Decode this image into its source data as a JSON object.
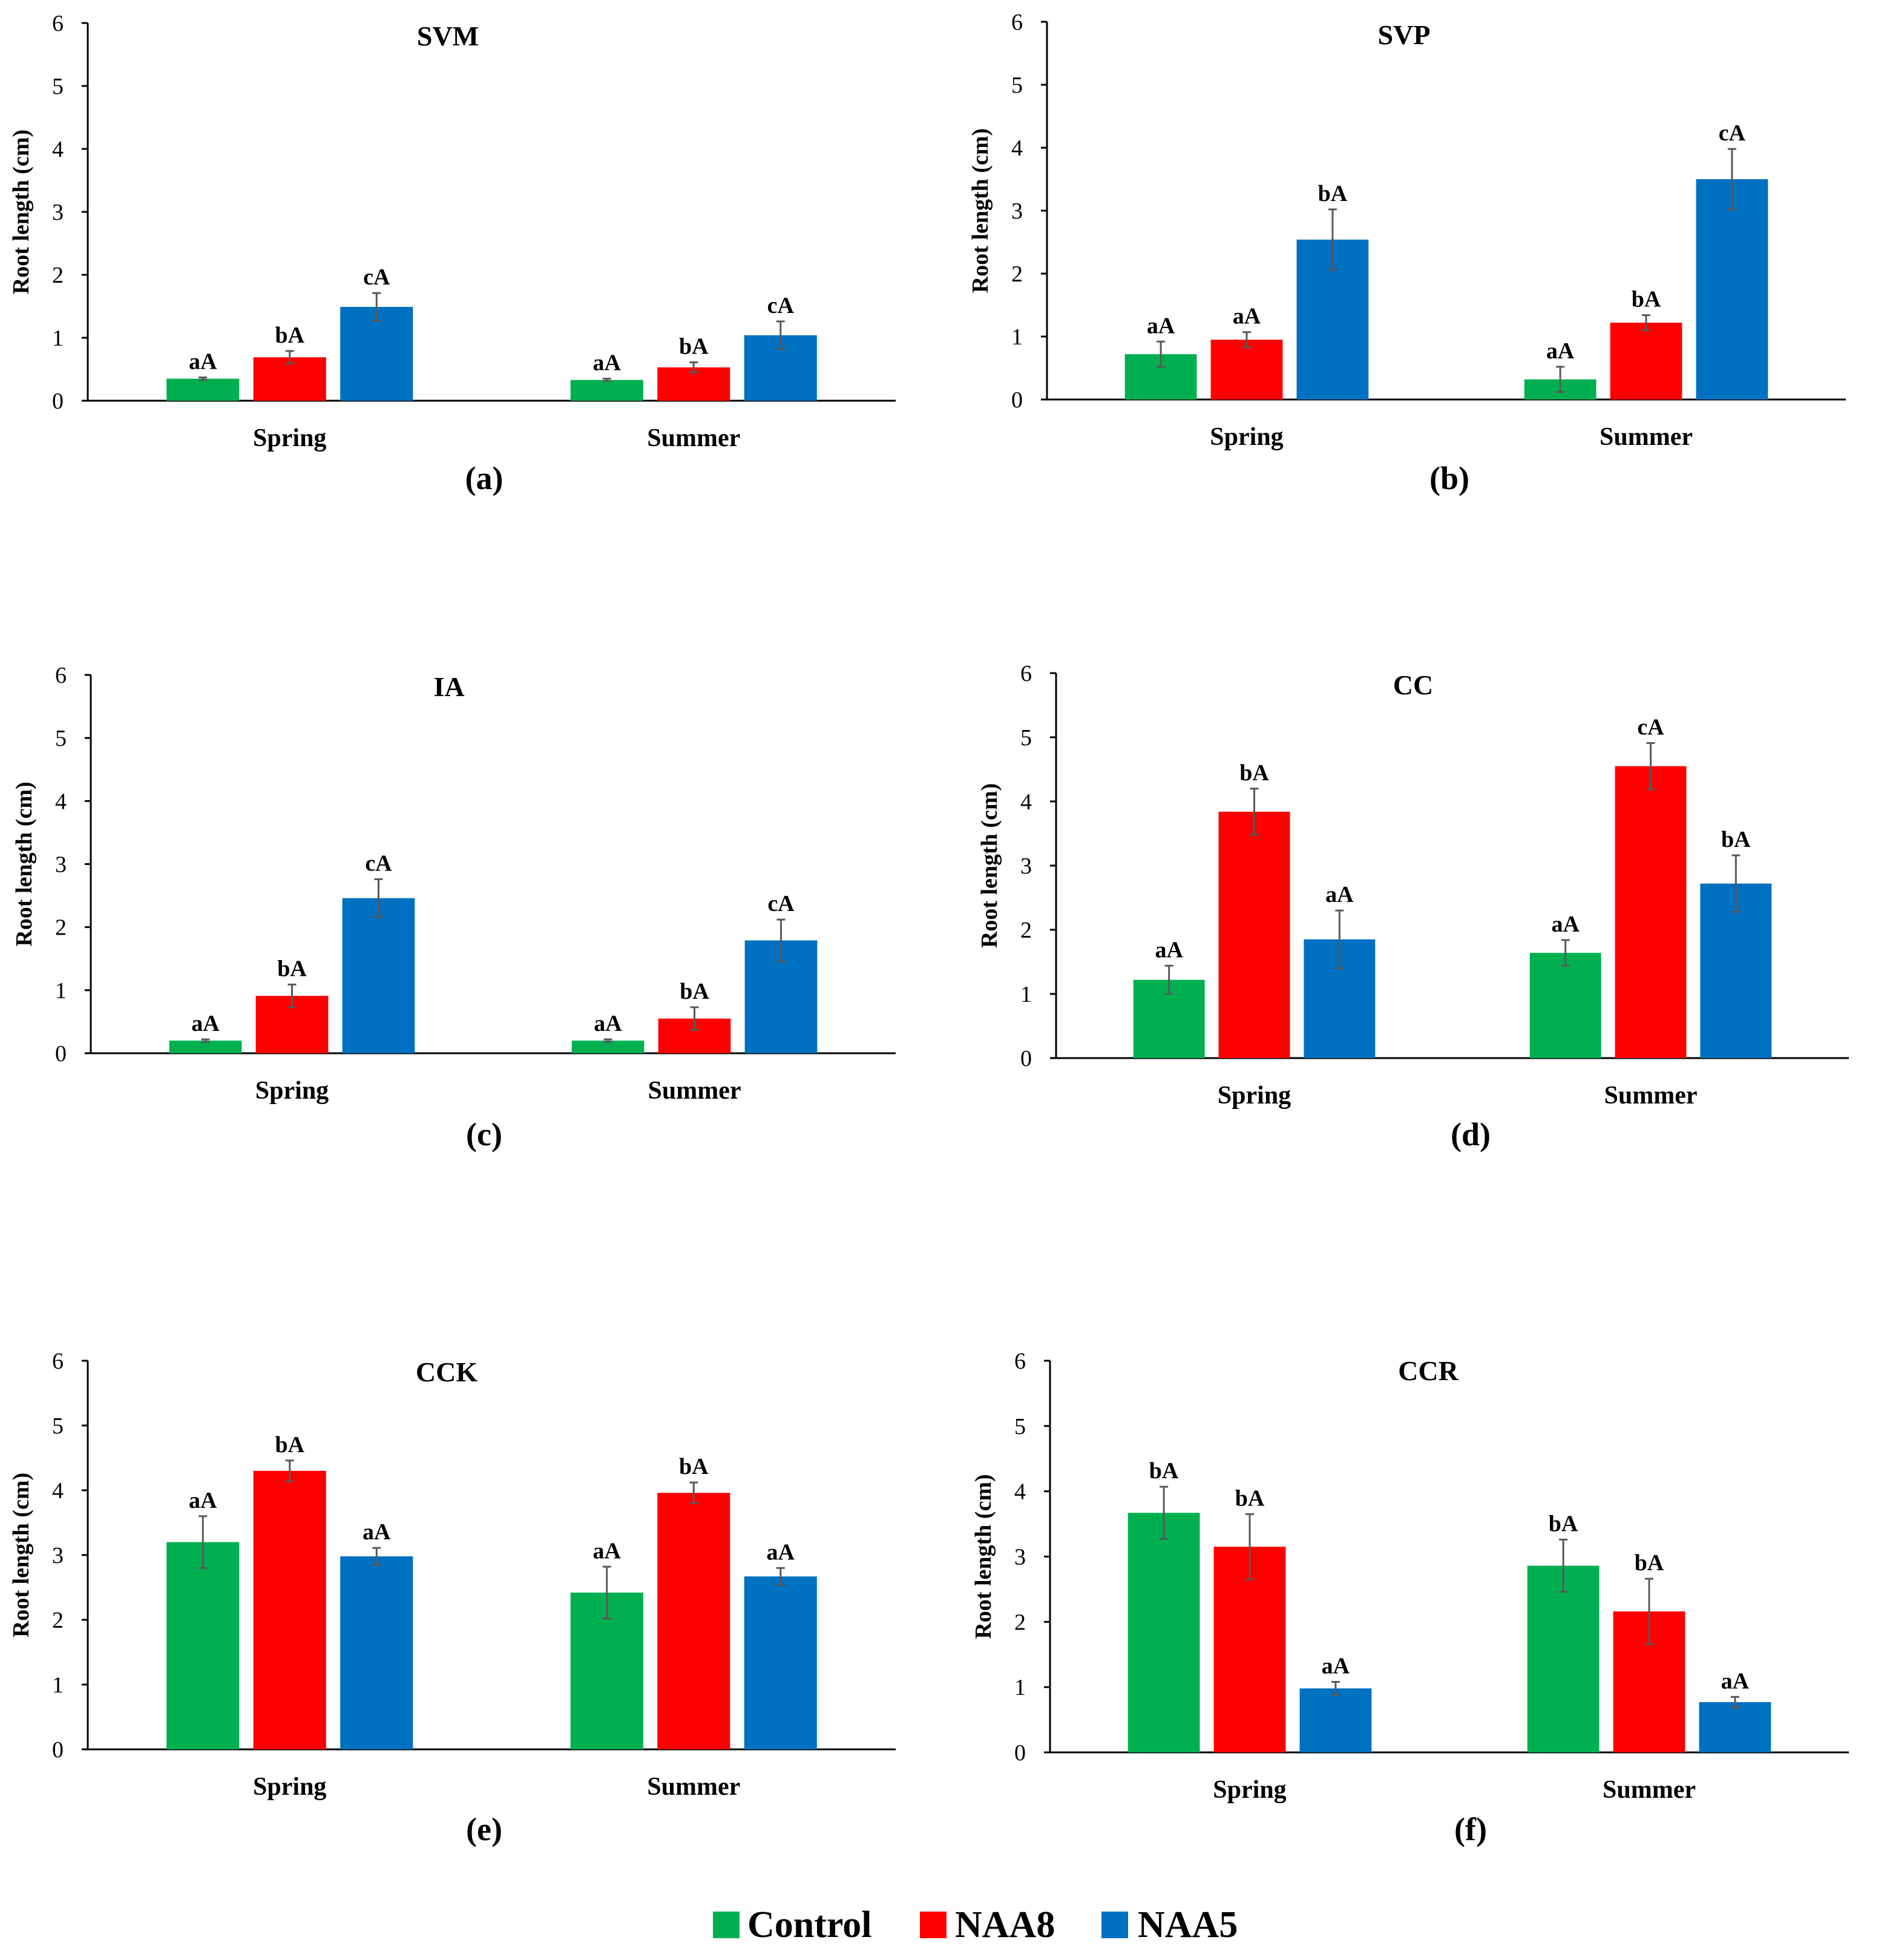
{
  "colors": {
    "Control": "#00b050",
    "NAA8": "#ff0000",
    "NAA5": "#0070c0"
  },
  "legend": [
    "Control",
    "NAA8",
    "NAA5"
  ],
  "chart_data": [
    {
      "type": "bar",
      "title": "SVM",
      "panel": "(a)",
      "ylabel": "Root length (cm)",
      "ylim": [
        0,
        6
      ],
      "yticks": [
        0,
        1,
        2,
        3,
        4,
        5,
        6
      ],
      "categories": [
        "Spring",
        "Summer"
      ],
      "series": [
        {
          "name": "Control",
          "values": [
            0.35,
            0.33
          ],
          "errors": [
            0.02,
            0.02
          ],
          "letters": [
            "aA",
            "aA"
          ]
        },
        {
          "name": "NAA8",
          "values": [
            0.69,
            0.53
          ],
          "errors": [
            0.1,
            0.08
          ],
          "letters": [
            "bA",
            "bA"
          ]
        },
        {
          "name": "NAA5",
          "values": [
            1.49,
            1.04
          ],
          "errors": [
            0.22,
            0.22
          ],
          "letters": [
            "cA",
            "cA"
          ]
        }
      ]
    },
    {
      "type": "bar",
      "title": "SVP",
      "panel": "(b)",
      "ylabel": "Root length (cm)",
      "ylim": [
        0,
        6
      ],
      "yticks": [
        0,
        1,
        2,
        3,
        4,
        5,
        6
      ],
      "categories": [
        "Spring",
        "Summer"
      ],
      "series": [
        {
          "name": "Control",
          "values": [
            0.72,
            0.32
          ],
          "errors": [
            0.2,
            0.2
          ],
          "letters": [
            "aA",
            "aA"
          ]
        },
        {
          "name": "NAA8",
          "values": [
            0.95,
            1.22
          ],
          "errors": [
            0.12,
            0.12
          ],
          "letters": [
            "aA",
            "bA"
          ]
        },
        {
          "name": "NAA5",
          "values": [
            2.54,
            3.5
          ],
          "errors": [
            0.48,
            0.48
          ],
          "letters": [
            "bA",
            "cA"
          ]
        }
      ]
    },
    {
      "type": "bar",
      "title": "IA",
      "panel": "(c)",
      "ylabel": "Root length (cm)",
      "ylim": [
        0,
        6
      ],
      "yticks": [
        0,
        1,
        2,
        3,
        4,
        5,
        6
      ],
      "categories": [
        "Spring",
        "Summer"
      ],
      "series": [
        {
          "name": "Control",
          "values": [
            0.2,
            0.2
          ],
          "errors": [
            0.02,
            0.02
          ],
          "letters": [
            "aA",
            "aA"
          ]
        },
        {
          "name": "NAA8",
          "values": [
            0.91,
            0.55
          ],
          "errors": [
            0.18,
            0.18
          ],
          "letters": [
            "bA",
            "bA"
          ]
        },
        {
          "name": "NAA5",
          "values": [
            2.46,
            1.79
          ],
          "errors": [
            0.3,
            0.33
          ],
          "letters": [
            "cA",
            "cA"
          ]
        }
      ]
    },
    {
      "type": "bar",
      "title": "CC",
      "panel": "(d)",
      "ylabel": "Root length (cm)",
      "ylim": [
        0,
        6
      ],
      "yticks": [
        0,
        1,
        2,
        3,
        4,
        5,
        6
      ],
      "categories": [
        "Spring",
        "Summer"
      ],
      "series": [
        {
          "name": "Control",
          "values": [
            1.22,
            1.64
          ],
          "errors": [
            0.22,
            0.2
          ],
          "letters": [
            "aA",
            "aA"
          ]
        },
        {
          "name": "NAA8",
          "values": [
            3.84,
            4.55
          ],
          "errors": [
            0.36,
            0.36
          ],
          "letters": [
            "bA",
            "cA"
          ]
        },
        {
          "name": "NAA5",
          "values": [
            1.85,
            2.72
          ],
          "errors": [
            0.45,
            0.44
          ],
          "letters": [
            "aA",
            "bA"
          ]
        }
      ]
    },
    {
      "type": "bar",
      "title": "CCK",
      "panel": "(e)",
      "ylabel": "Root length (cm)",
      "ylim": [
        0,
        6
      ],
      "yticks": [
        0,
        1,
        2,
        3,
        4,
        5,
        6
      ],
      "categories": [
        "Spring",
        "Summer"
      ],
      "series": [
        {
          "name": "Control",
          "values": [
            3.2,
            2.42
          ],
          "errors": [
            0.4,
            0.4
          ],
          "letters": [
            "aA",
            "aA"
          ]
        },
        {
          "name": "NAA8",
          "values": [
            4.3,
            3.96
          ],
          "errors": [
            0.16,
            0.16
          ],
          "letters": [
            "bA",
            "bA"
          ]
        },
        {
          "name": "NAA5",
          "values": [
            2.98,
            2.67
          ],
          "errors": [
            0.13,
            0.13
          ],
          "letters": [
            "aA",
            "aA"
          ]
        }
      ]
    },
    {
      "type": "bar",
      "title": "CCR",
      "panel": "(f)",
      "ylabel": "Root length (cm)",
      "ylim": [
        0,
        6
      ],
      "yticks": [
        0,
        1,
        2,
        3,
        4,
        5,
        6
      ],
      "categories": [
        "Spring",
        "Summer"
      ],
      "series": [
        {
          "name": "Control",
          "values": [
            3.67,
            2.86
          ],
          "errors": [
            0.4,
            0.4
          ],
          "letters": [
            "bA",
            "bA"
          ]
        },
        {
          "name": "NAA8",
          "values": [
            3.15,
            2.16
          ],
          "errors": [
            0.5,
            0.5
          ],
          "letters": [
            "bA",
            "bA"
          ]
        },
        {
          "name": "NAA5",
          "values": [
            0.98,
            0.77
          ],
          "errors": [
            0.1,
            0.08
          ],
          "letters": [
            "aA",
            "aA"
          ]
        }
      ]
    }
  ]
}
